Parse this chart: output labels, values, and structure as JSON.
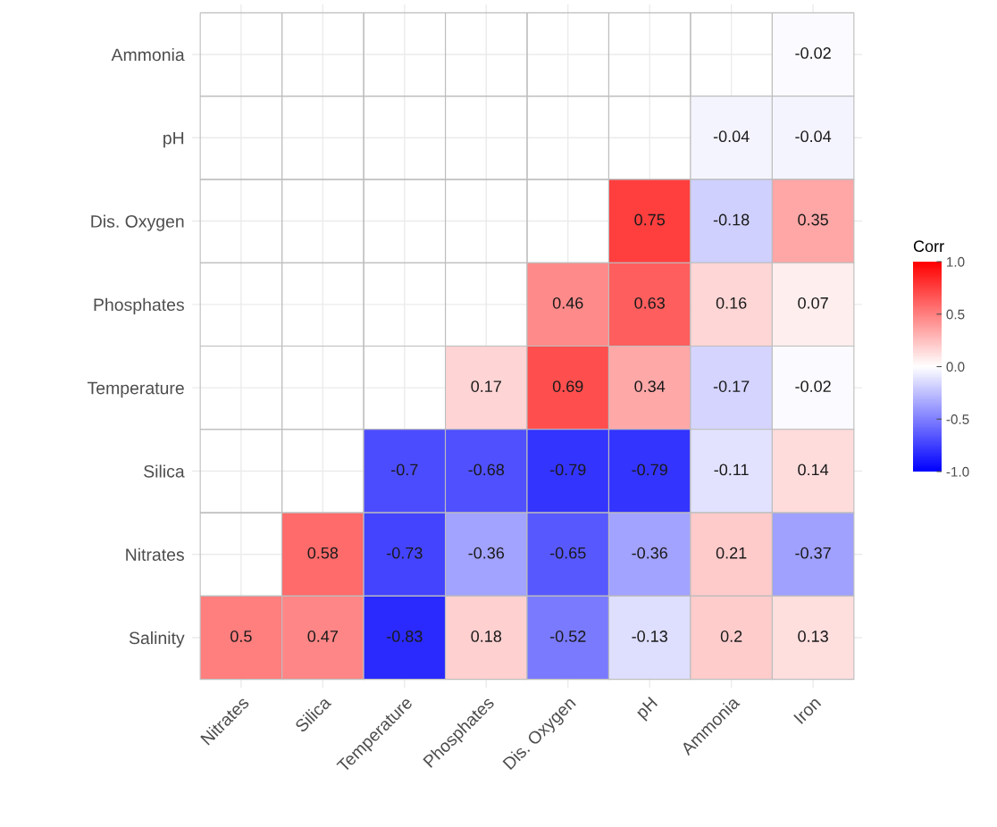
{
  "chart_data": {
    "type": "heatmap",
    "categories": [
      "Nitrates",
      "Silica",
      "Temperature",
      "Phosphates",
      "Dis. Oxygen",
      "pH",
      "Ammonia",
      "Iron"
    ],
    "y_categories": [
      "Ammonia",
      "pH",
      "Dis. Oxygen",
      "Phosphates",
      "Temperature",
      "Silica",
      "Nitrates",
      "Salinity"
    ],
    "cells": [
      [
        null,
        null,
        null,
        null,
        null,
        null,
        null,
        -0.02
      ],
      [
        null,
        null,
        null,
        null,
        null,
        null,
        -0.04,
        -0.04
      ],
      [
        null,
        null,
        null,
        null,
        null,
        0.75,
        -0.18,
        0.35
      ],
      [
        null,
        null,
        null,
        null,
        0.46,
        0.63,
        0.16,
        0.07
      ],
      [
        null,
        null,
        null,
        0.17,
        0.69,
        0.34,
        -0.17,
        -0.02
      ],
      [
        null,
        null,
        -0.7,
        -0.68,
        -0.79,
        -0.79,
        -0.11,
        0.14
      ],
      [
        null,
        0.58,
        -0.73,
        -0.36,
        -0.65,
        -0.36,
        0.21,
        -0.37
      ],
      [
        0.5,
        0.47,
        -0.83,
        0.18,
        -0.52,
        -0.13,
        0.2,
        0.13
      ]
    ],
    "clabel": "Corr",
    "clim": [
      -1,
      1
    ],
    "cticks": [
      {
        "value": -1,
        "label": "-1.0"
      },
      {
        "value": -0.5,
        "label": "-0.5"
      },
      {
        "value": 0,
        "label": "0.0"
      },
      {
        "value": 0.5,
        "label": "0.5"
      },
      {
        "value": 1,
        "label": "1.0"
      }
    ],
    "data_labels": true,
    "grid": true
  }
}
